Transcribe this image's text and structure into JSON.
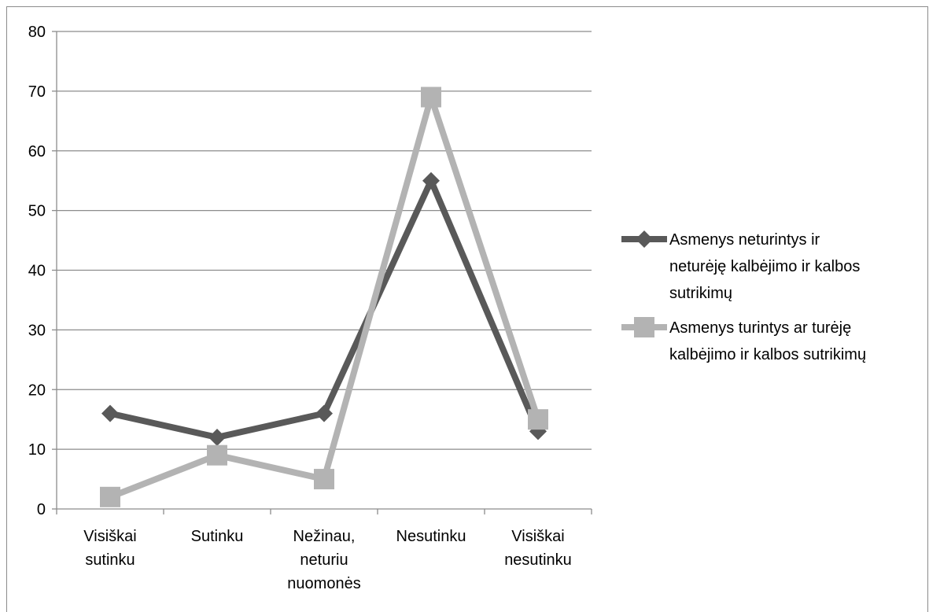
{
  "chart_data": {
    "type": "line",
    "title": "",
    "xlabel": "",
    "ylabel": "",
    "categories": [
      [
        "Visiškai",
        "sutinku"
      ],
      [
        "Sutinku"
      ],
      [
        "Nežinau,",
        "neturiu",
        "nuomonės"
      ],
      [
        "Nesutinku"
      ],
      [
        "Visiškai",
        "nesutinku"
      ]
    ],
    "ylim": [
      0,
      80
    ],
    "yticks": [
      "0",
      "10",
      "20",
      "30",
      "40",
      "50",
      "60",
      "70",
      "80"
    ],
    "grid": true,
    "legend_position": "right",
    "series": [
      {
        "name_lines": [
          "Asmenys neturintys ir",
          "neturėję kalbėjimo ir kalbos",
          "sutrikimų"
        ],
        "values": [
          16,
          12,
          16,
          55,
          13
        ],
        "color": "#595959",
        "marker": "diamond"
      },
      {
        "name_lines": [
          "Asmenys turintys ar turėję",
          "kalbėjimo ir kalbos sutrikimų"
        ],
        "values": [
          2,
          9,
          5,
          69,
          15
        ],
        "color": "#b3b3b3",
        "marker": "square"
      }
    ]
  }
}
